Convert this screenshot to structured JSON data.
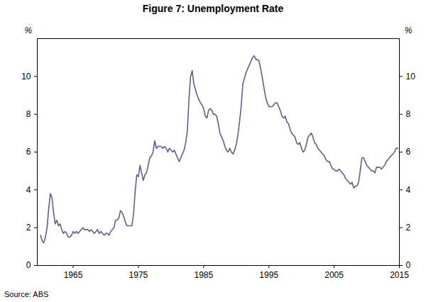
{
  "chart_data": {
    "type": "line",
    "title": "Figure 7: Unemployment Rate",
    "ylabel": "%",
    "caption": "Source: ABS",
    "color": "#5a5f9e",
    "xlim": [
      1959.5,
      2015
    ],
    "xticks": [
      1965,
      1975,
      1985,
      1995,
      2005,
      2015
    ],
    "ylim": [
      0,
      12
    ],
    "yticks": [
      0,
      2,
      4,
      6,
      8,
      10
    ],
    "grid": false,
    "x": [
      1960,
      1960.25,
      1960.5,
      1960.75,
      1961,
      1961.25,
      1961.5,
      1961.75,
      1962,
      1962.25,
      1962.5,
      1962.75,
      1963,
      1963.25,
      1963.5,
      1963.75,
      1964,
      1964.25,
      1964.5,
      1964.75,
      1965,
      1965.25,
      1965.5,
      1965.75,
      1966,
      1966.25,
      1966.5,
      1966.75,
      1967,
      1967.25,
      1967.5,
      1967.75,
      1968,
      1968.25,
      1968.5,
      1968.75,
      1969,
      1969.25,
      1969.5,
      1969.75,
      1970,
      1970.25,
      1970.5,
      1970.75,
      1971,
      1971.25,
      1971.5,
      1971.75,
      1972,
      1972.25,
      1972.5,
      1972.75,
      1973,
      1973.25,
      1973.5,
      1973.75,
      1974,
      1974.25,
      1974.5,
      1974.75,
      1975,
      1975.25,
      1975.5,
      1975.75,
      1976,
      1976.25,
      1976.5,
      1976.75,
      1977,
      1977.25,
      1977.5,
      1977.75,
      1978,
      1978.25,
      1978.5,
      1978.75,
      1979,
      1979.25,
      1979.5,
      1979.75,
      1980,
      1980.25,
      1980.5,
      1980.75,
      1981,
      1981.25,
      1981.5,
      1981.75,
      1982,
      1982.25,
      1982.5,
      1982.75,
      1983,
      1983.25,
      1983.5,
      1983.75,
      1984,
      1984.25,
      1984.5,
      1984.75,
      1985,
      1985.25,
      1985.5,
      1985.75,
      1986,
      1986.25,
      1986.5,
      1986.75,
      1987,
      1987.25,
      1987.5,
      1987.75,
      1988,
      1988.25,
      1988.5,
      1988.75,
      1989,
      1989.25,
      1989.5,
      1989.75,
      1990,
      1990.25,
      1990.5,
      1990.75,
      1991,
      1991.25,
      1991.5,
      1991.75,
      1992,
      1992.25,
      1992.5,
      1992.75,
      1993,
      1993.25,
      1993.5,
      1993.75,
      1994,
      1994.25,
      1994.5,
      1994.75,
      1995,
      1995.25,
      1995.5,
      1995.75,
      1996,
      1996.25,
      1996.5,
      1996.75,
      1997,
      1997.25,
      1997.5,
      1997.75,
      1998,
      1998.25,
      1998.5,
      1998.75,
      1999,
      1999.25,
      1999.5,
      1999.75,
      2000,
      2000.25,
      2000.5,
      2000.75,
      2001,
      2001.25,
      2001.5,
      2001.75,
      2002,
      2002.25,
      2002.5,
      2002.75,
      2003,
      2003.25,
      2003.5,
      2003.75,
      2004,
      2004.25,
      2004.5,
      2004.75,
      2005,
      2005.25,
      2005.5,
      2005.75,
      2006,
      2006.25,
      2006.5,
      2006.75,
      2007,
      2007.25,
      2007.5,
      2007.75,
      2008,
      2008.25,
      2008.5,
      2008.75,
      2009,
      2009.25,
      2009.5,
      2009.75,
      2010,
      2010.25,
      2010.5,
      2010.75,
      2011,
      2011.25,
      2011.5,
      2011.75,
      2012,
      2012.25,
      2012.5,
      2012.75,
      2013,
      2013.25,
      2013.5,
      2013.75,
      2014,
      2014.25,
      2014.5,
      2014.75
    ],
    "values": [
      1.6,
      1.3,
      1.2,
      1.5,
      2.0,
      3.0,
      3.8,
      3.6,
      2.8,
      2.2,
      2.4,
      2.1,
      2.2,
      1.9,
      1.7,
      1.8,
      1.7,
      1.5,
      1.5,
      1.6,
      1.8,
      1.7,
      1.8,
      1.7,
      1.8,
      1.9,
      2.0,
      1.9,
      1.9,
      1.9,
      1.8,
      1.9,
      1.8,
      1.7,
      1.8,
      1.9,
      1.7,
      1.8,
      1.7,
      1.6,
      1.7,
      1.7,
      1.6,
      1.8,
      1.9,
      2.0,
      2.4,
      2.4,
      2.5,
      2.9,
      2.8,
      2.6,
      2.3,
      2.1,
      2.1,
      2.1,
      2.1,
      2.7,
      3.9,
      4.8,
      4.7,
      5.3,
      4.9,
      4.5,
      4.8,
      4.9,
      5.3,
      5.7,
      5.8,
      6.0,
      6.6,
      6.2,
      6.3,
      6.3,
      6.3,
      6.2,
      6.3,
      6.2,
      6.0,
      6.2,
      6.1,
      6.0,
      6.1,
      5.9,
      5.7,
      5.5,
      5.7,
      5.9,
      6.1,
      6.5,
      7.1,
      8.8,
      10.0,
      10.3,
      9.6,
      9.3,
      9.0,
      8.8,
      8.6,
      8.5,
      8.3,
      7.9,
      7.8,
      8.2,
      8.3,
      8.2,
      8.0,
      8.0,
      7.9,
      7.5,
      7.0,
      6.8,
      6.6,
      6.3,
      6.1,
      6.0,
      6.2,
      6.0,
      5.9,
      6.1,
      6.4,
      6.9,
      7.6,
      8.4,
      9.6,
      9.9,
      10.2,
      10.4,
      10.6,
      10.8,
      11.0,
      11.1,
      10.9,
      10.9,
      10.8,
      10.4,
      9.9,
      9.4,
      8.9,
      8.6,
      8.4,
      8.4,
      8.4,
      8.5,
      8.6,
      8.6,
      8.4,
      8.2,
      7.9,
      7.8,
      7.9,
      7.6,
      7.5,
      7.2,
      7.0,
      6.9,
      6.8,
      6.5,
      6.4,
      6.5,
      6.2,
      6.0,
      6.1,
      6.4,
      6.8,
      6.9,
      7.0,
      6.8,
      6.5,
      6.4,
      6.2,
      6.1,
      6.0,
      5.9,
      5.8,
      5.6,
      5.5,
      5.5,
      5.3,
      5.1,
      5.1,
      5.0,
      5.0,
      5.1,
      5.0,
      4.9,
      4.8,
      4.6,
      4.5,
      4.4,
      4.3,
      4.4,
      4.1,
      4.2,
      4.2,
      4.4,
      5.0,
      5.7,
      5.7,
      5.5,
      5.3,
      5.2,
      5.1,
      5.0,
      5.0,
      4.9,
      5.2,
      5.2,
      5.2,
      5.1,
      5.2,
      5.3,
      5.5,
      5.6,
      5.7,
      5.8,
      5.9,
      6.0,
      6.2,
      6.2
    ]
  }
}
